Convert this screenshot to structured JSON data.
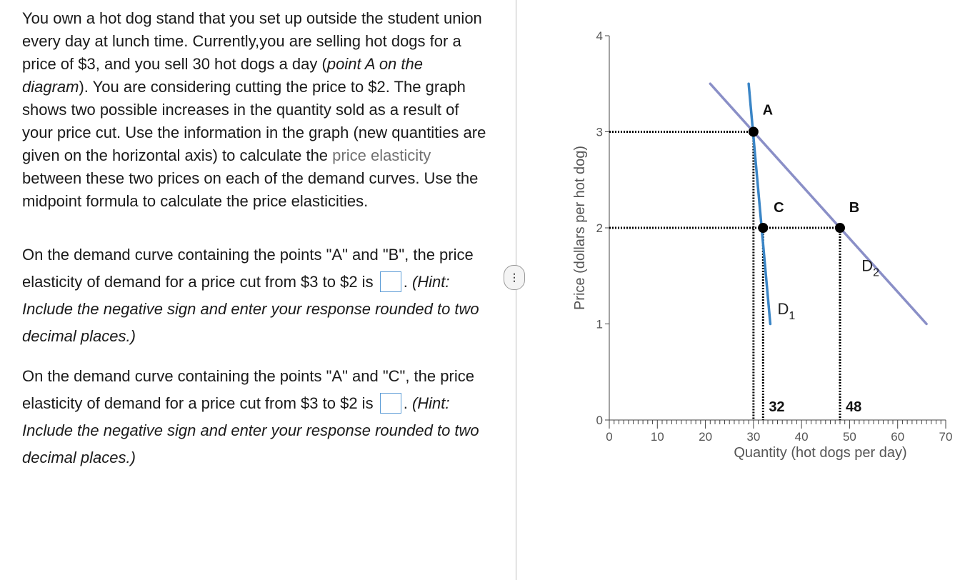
{
  "question": {
    "intro_part1": "You own a hot dog stand that you set up outside the student union every day at lunch time. Currently,you are selling hot dogs for a price of $3, and you sell 30 hot dogs a day (",
    "intro_italic": "point A on the diagram",
    "intro_part2": "). You are considering cutting the price to $2. The graph shows two possible increases in the quantity sold as a result of your price cut. Use the information in the graph (new quantities are given on  the horizontal axis) to calculate the ",
    "intro_link": "price elasticity",
    "intro_part3": " between these two prices on each of the demand curves. Use the midpoint formula to calculate the price elasticities.",
    "q1_text": "On the demand curve containing the points \"A\" and \"B\", the price elasticity of demand for a price cut from $3 to $2 is",
    "q1_answer": "",
    "q2_text": "On the demand curve containing the points \"A\" and \"C\", the price elasticity of demand for a price cut from $3 to $2 is",
    "q2_answer": "",
    "hint_prefix": ".",
    "hint": "(Hint: Include the negative sign and enter your response rounded to two decimal places.)"
  },
  "divider_handle_label": "⋮",
  "chart_data": {
    "type": "line",
    "xlabel": "Quantity (hot dogs per day)",
    "ylabel": "Price (dollars per hot dog)",
    "xlim": [
      0,
      70
    ],
    "ylim": [
      0,
      4
    ],
    "x_ticks": [
      "0",
      "10",
      "20",
      "30",
      "40",
      "50",
      "60",
      "70"
    ],
    "y_ticks": [
      "0",
      "1",
      "2",
      "3",
      "4"
    ],
    "series": [
      {
        "name": "D1",
        "color": "#3a85c6",
        "points": [
          [
            29.0,
            3.5
          ],
          [
            33.5,
            1.0
          ]
        ]
      },
      {
        "name": "D2",
        "color": "#8a8fc7",
        "points": [
          [
            21.0,
            3.5
          ],
          [
            66.0,
            1.0
          ]
        ]
      }
    ],
    "points": [
      {
        "label": "A",
        "x": 30,
        "y": 3
      },
      {
        "label": "C",
        "x": 32,
        "y": 2
      },
      {
        "label": "B",
        "x": 48,
        "y": 2
      }
    ],
    "curve_labels": [
      {
        "name": "D",
        "sub": "1",
        "x": 35.0,
        "y": 1.1
      },
      {
        "name": "D",
        "sub": "2",
        "x": 52.5,
        "y": 1.55
      }
    ],
    "quantity_labels": [
      "32",
      "48"
    ],
    "guide_color": "#000000"
  }
}
